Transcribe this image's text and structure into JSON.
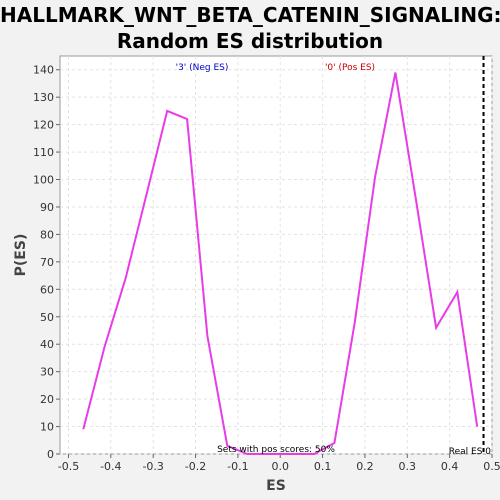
{
  "title_line1": "HALLMARK_WNT_BETA_CATENIN_SIGNALING:",
  "title_line2": "Random ES distribution",
  "colors": {
    "line": "#e83ce8",
    "neg": "#0000cc",
    "pos": "#cc0000"
  },
  "chart_data": {
    "type": "line",
    "title": "HALLMARK_WNT_BETA_CATENIN_SIGNALING: Random ES distribution",
    "xlabel": "ES",
    "ylabel": "P(ES)",
    "xlim": [
      -0.52,
      0.5
    ],
    "ylim": [
      0,
      145
    ],
    "x_ticks": [
      -0.5,
      -0.4,
      -0.3,
      -0.2,
      -0.1,
      0.0,
      0.1,
      0.2,
      0.3,
      0.4,
      0.5
    ],
    "x_tick_labels": [
      "-0.5",
      "-0.4",
      "-0.3",
      "-0.2",
      "-0.1",
      "0.0",
      "0.1",
      "0.2",
      "0.3",
      "0.4",
      "0.5"
    ],
    "y_ticks": [
      0,
      10,
      20,
      30,
      40,
      50,
      60,
      70,
      80,
      90,
      100,
      110,
      120,
      130,
      140
    ],
    "grid": true,
    "series": [
      {
        "x": [
          -0.465,
          -0.415,
          -0.365,
          -0.315,
          -0.267,
          -0.22,
          -0.172,
          -0.125,
          -0.078,
          -0.03,
          0.02,
          0.08,
          0.128,
          0.176,
          0.224,
          0.272,
          0.32,
          0.368,
          0.418,
          0.465
        ],
        "values": [
          9,
          39,
          64,
          95,
          125,
          122,
          43,
          3,
          0,
          0,
          0,
          0,
          4,
          48,
          101,
          139,
          93,
          46,
          59,
          10
        ]
      }
    ],
    "real_es": 0.48,
    "annotations": {
      "neg_label": "'3' (Neg ES)",
      "pos_label": "'0' (Pos ES)",
      "pos_scores": "Sets with pos scores: 50%",
      "real_es": "Real ES 0"
    }
  }
}
